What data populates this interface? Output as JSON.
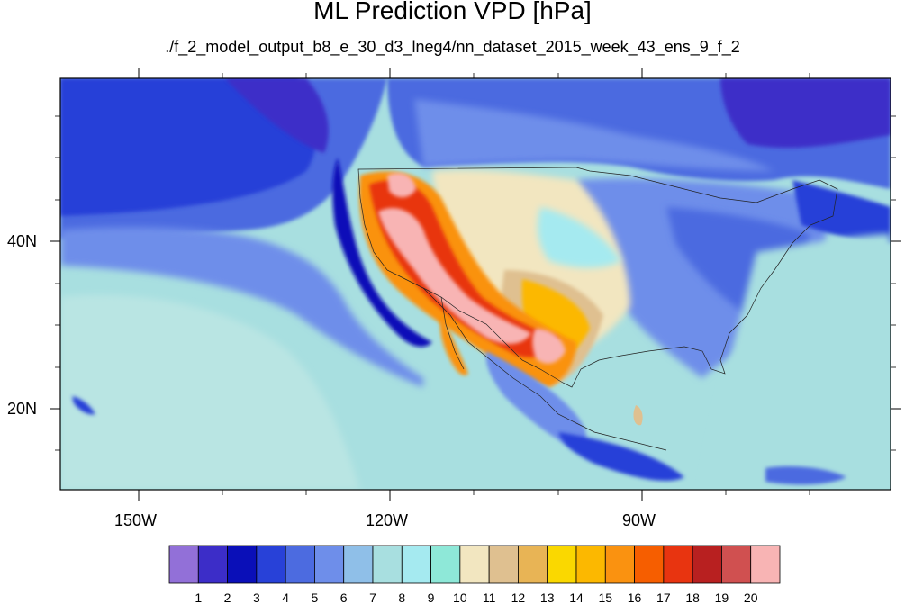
{
  "title": "ML Prediction VPD [hPa]",
  "subtitle": "./f_2_model_output_b8_e_30_d3_lneg4/nn_dataset_2015_week_43_ens_9_f_2",
  "x_ticks": [
    "150W",
    "120W",
    "90W"
  ],
  "y_ticks": [
    "40N",
    "20N"
  ],
  "colorbar": {
    "labels": [
      "1",
      "2",
      "3",
      "4",
      "5",
      "6",
      "7",
      "8",
      "9",
      "10",
      "11",
      "12",
      "13",
      "14",
      "15",
      "16",
      "17",
      "18",
      "19",
      "20"
    ],
    "colors": [
      "#9270d8",
      "#3c2dc8",
      "#0a0fb8",
      "#2841d8",
      "#4c6be0",
      "#6e8eea",
      "#8fbfe8",
      "#a8dfe0",
      "#a5eaf0",
      "#8ee8d8",
      "#f2e6c0",
      "#dfc090",
      "#e8b455",
      "#fad800",
      "#fcb800",
      "#fa9210",
      "#f65e00",
      "#e83410",
      "#b82020",
      "#d05050",
      "#f8b4b4"
    ]
  },
  "map": {
    "background_color": "#a8dfe0"
  }
}
